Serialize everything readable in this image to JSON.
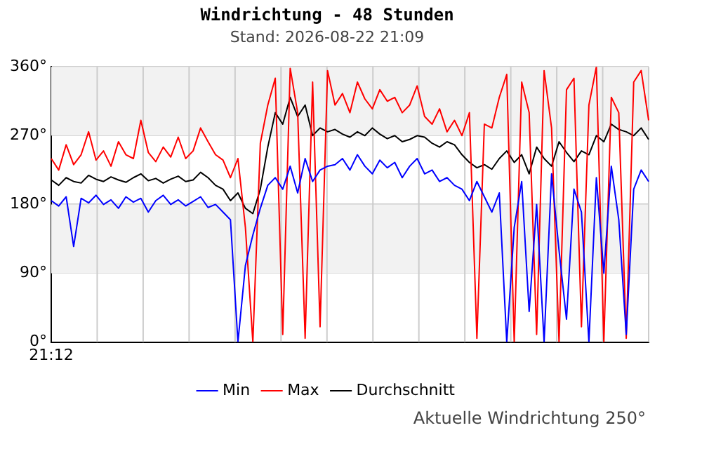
{
  "chart_data": {
    "type": "line",
    "title": "Windrichtung - 48 Stunden",
    "subtitle": "Stand: 2026-08-22 21:09",
    "categories": [
      "21:12",
      null,
      null,
      null,
      null,
      null,
      null,
      null,
      null,
      null,
      null,
      null,
      null,
      null,
      null,
      null,
      null,
      null,
      null,
      null,
      null,
      null,
      null,
      null,
      null,
      null,
      null,
      null,
      null,
      null,
      null,
      null,
      null,
      null,
      null,
      null,
      null,
      null,
      null,
      null,
      null,
      null,
      null,
      null,
      null,
      null,
      null,
      null,
      null,
      null,
      null,
      null,
      null,
      null,
      null,
      null,
      null,
      null,
      null,
      null,
      null,
      null,
      null,
      null,
      null,
      null,
      null,
      null,
      null,
      null,
      null,
      null,
      null,
      null,
      null,
      null,
      null,
      null,
      null,
      null,
      null
    ],
    "ylim": [
      0,
      360
    ],
    "yticks": [
      {
        "value": 0,
        "label": "0°"
      },
      {
        "value": 90,
        "label": "90°"
      },
      {
        "value": 180,
        "label": "180°"
      },
      {
        "value": 270,
        "label": "270°"
      },
      {
        "value": 360,
        "label": "360°"
      }
    ],
    "grid": true,
    "legend": "bottom",
    "marker": "none",
    "line_style": "solid",
    "bands": [
      {
        "axis": "y",
        "from": 270,
        "to": 360,
        "color": "#f2f2f2"
      },
      {
        "axis": "y",
        "from": 90,
        "to": 180,
        "color": "#f2f2f2"
      }
    ],
    "series": [
      {
        "name": "Min",
        "color": "#0000ff",
        "values": [
          185,
          178,
          190,
          125,
          188,
          182,
          192,
          180,
          186,
          175,
          190,
          183,
          188,
          170,
          185,
          192,
          180,
          186,
          178,
          184,
          190,
          176,
          180,
          170,
          160,
          0,
          100,
          140,
          175,
          205,
          215,
          200,
          230,
          195,
          240,
          210,
          225,
          230,
          232,
          240,
          225,
          245,
          230,
          220,
          238,
          228,
          235,
          215,
          230,
          240,
          220,
          225,
          210,
          215,
          205,
          200,
          185,
          210,
          190,
          170,
          195,
          0,
          150,
          210,
          40,
          180,
          0,
          220,
          120,
          30,
          200,
          170,
          0,
          215,
          90,
          230,
          160,
          10,
          200,
          225,
          210
        ]
      },
      {
        "name": "Max",
        "color": "#ff0000",
        "values": [
          240,
          225,
          258,
          232,
          245,
          275,
          238,
          250,
          230,
          262,
          245,
          240,
          290,
          248,
          236,
          255,
          242,
          268,
          240,
          250,
          280,
          262,
          245,
          238,
          215,
          240,
          150,
          0,
          260,
          310,
          345,
          10,
          358,
          300,
          5,
          340,
          20,
          355,
          310,
          325,
          300,
          340,
          318,
          305,
          330,
          315,
          320,
          300,
          310,
          335,
          295,
          285,
          305,
          275,
          290,
          270,
          300,
          5,
          285,
          280,
          320,
          350,
          0,
          340,
          300,
          10,
          355,
          280,
          0,
          330,
          345,
          20,
          310,
          360,
          0,
          320,
          300,
          5,
          340,
          355,
          290
        ]
      },
      {
        "name": "Durchschnitt",
        "color": "#000000",
        "values": [
          212,
          205,
          215,
          210,
          208,
          218,
          213,
          210,
          216,
          212,
          209,
          215,
          220,
          211,
          214,
          208,
          213,
          217,
          210,
          212,
          222,
          215,
          205,
          200,
          185,
          195,
          175,
          168,
          200,
          255,
          300,
          285,
          320,
          295,
          310,
          270,
          280,
          275,
          278,
          272,
          268,
          275,
          270,
          280,
          272,
          266,
          270,
          262,
          265,
          270,
          268,
          260,
          255,
          262,
          258,
          245,
          235,
          228,
          232,
          226,
          240,
          250,
          235,
          245,
          220,
          255,
          240,
          230,
          262,
          248,
          236,
          250,
          245,
          270,
          262,
          285,
          278,
          275,
          270,
          280,
          265
        ]
      }
    ],
    "annotations": [
      "Aktuelle Windrichtung 250°"
    ]
  }
}
